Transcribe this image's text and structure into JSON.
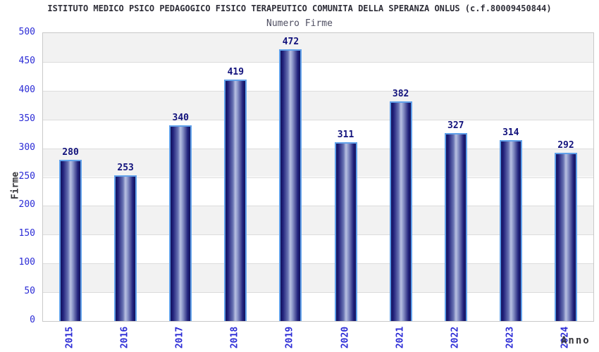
{
  "colors": {
    "title": "#2e2e38",
    "subtitle": "#4f4f62",
    "tick_label": "#2b2bd6",
    "value_label": "#12127c",
    "axis_title": "#38383c",
    "band_gray": "#f2f2f2",
    "grid_line": "#dcdcdc",
    "plot_border": "#c9c9c9",
    "bar_border": "#61a1ea",
    "bar_dark": "#13135e",
    "bar_light": "#b9c1e2"
  },
  "chart_data": {
    "type": "bar",
    "title": "ISTITUTO MEDICO PSICO PEDAGOGICO FISICO TERAPEUTICO COMUNITA DELLA SPERANZA ONLUS (c.f.80009450844)",
    "subtitle": "Numero Firme",
    "xlabel": "Anno",
    "ylabel": "Firme",
    "categories": [
      "2015",
      "2016",
      "2017",
      "2018",
      "2019",
      "2020",
      "2021",
      "2022",
      "2023",
      "2024"
    ],
    "values": [
      280,
      253,
      340,
      419,
      472,
      311,
      382,
      327,
      314,
      292
    ],
    "ylim": [
      0,
      500
    ],
    "yticks": [
      0,
      50,
      100,
      150,
      200,
      250,
      300,
      350,
      400,
      450,
      500
    ],
    "grid": "horizontal gray bands every 50, gridline at each tick",
    "legend": "none",
    "bar_style": "navy cylinder gradient with light-blue outline, value label above each bar"
  }
}
